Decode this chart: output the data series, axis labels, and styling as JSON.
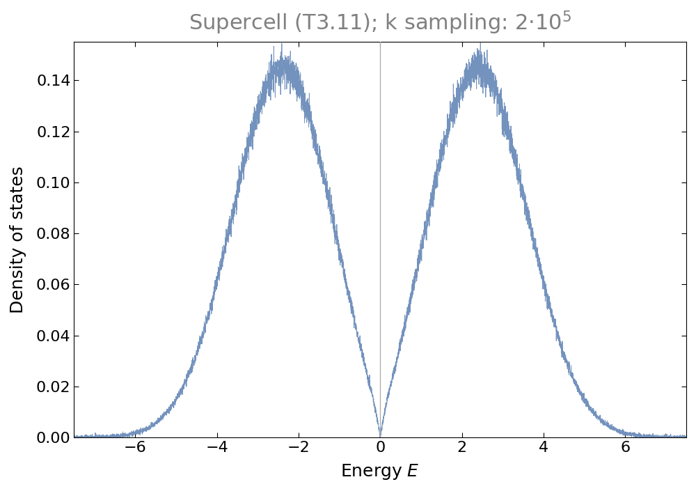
{
  "title": "Supercell (T3.11); k sampling: 2·10⁵",
  "xlabel": "Energy E",
  "ylabel": "Density of states",
  "xlim": [
    -7.5,
    7.5
  ],
  "ylim": [
    0,
    0.155
  ],
  "xticks": [
    -6,
    -4,
    -2,
    0,
    2,
    4,
    6
  ],
  "yticks": [
    0.0,
    0.02,
    0.04,
    0.06,
    0.08,
    0.1,
    0.12,
    0.14
  ],
  "line_color": "#6b8cba",
  "vline_color": "#aaaaaa",
  "title_color": "#808080",
  "title_fontsize": 22,
  "label_fontsize": 18,
  "tick_fontsize": 16,
  "seed": 42
}
